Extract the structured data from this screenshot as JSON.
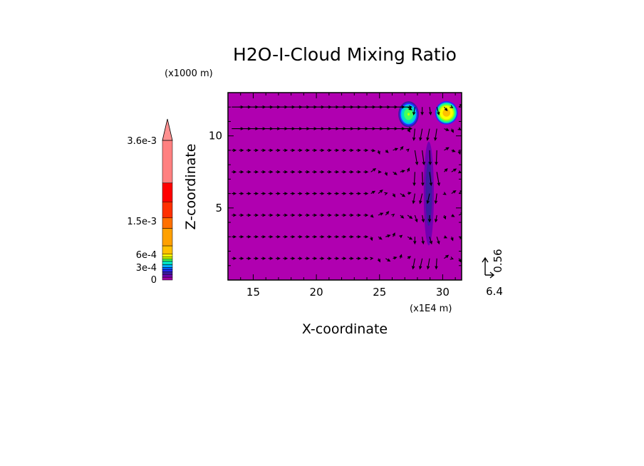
{
  "chart_data": {
    "type": "heatmap",
    "title": "H2O-I-Cloud Mixing Ratio",
    "xlabel": "X-coordinate",
    "ylabel": "Z-coordinate",
    "x_unit": "(x1E4 m)",
    "y_unit": "(x1000 m)",
    "xlim": [
      13,
      31.5
    ],
    "ylim": [
      0,
      13
    ],
    "x_ticks": [
      "15",
      "20",
      "25",
      "30"
    ],
    "x_tick_values": [
      15,
      20,
      25,
      30
    ],
    "y_ticks": [
      "5",
      "10"
    ],
    "y_tick_values": [
      5,
      10
    ],
    "background_color": "#b000b0",
    "colorbar": {
      "labels": [
        "3.6e-3",
        "1.5e-3",
        "6e-4",
        "3e-4",
        "0"
      ],
      "levels": [
        0,
        5e-05,
        0.0001,
        0.00015,
        0.0002,
        0.00025,
        0.0003,
        0.0004,
        0.0005,
        0.0006,
        0.0008,
        0.001,
        0.0015,
        0.002,
        0.0025,
        0.003,
        0.0036
      ],
      "colors": [
        "#a000a0",
        "#7000b0",
        "#3c1ca0",
        "#2828ff",
        "#0060ff",
        "#00b0ff",
        "#00e0c0",
        "#40ff60",
        "#c0ff00",
        "#ffff00",
        "#ffc000",
        "#ffa000",
        "#ff7000",
        "#ff3000",
        "#ff0000",
        "#ff8080"
      ]
    },
    "cloud_regions": [
      {
        "x": 27.3,
        "z": 11.5,
        "rx": 0.9,
        "rz": 1.0,
        "peak": 0.0005
      },
      {
        "x": 30.3,
        "z": 11.6,
        "rx": 1.0,
        "rz": 0.9,
        "peak": 0.0009
      },
      {
        "x": 28.9,
        "z": 6.0,
        "rx": 0.5,
        "rz": 4.5,
        "peak": 0.00012
      }
    ],
    "vector_rows_z": [
      1.5,
      3.0,
      4.5,
      6.0,
      7.5,
      9.0,
      10.5,
      12.0
    ],
    "vector_reference": {
      "u": "6.4",
      "w": "0.56"
    }
  }
}
